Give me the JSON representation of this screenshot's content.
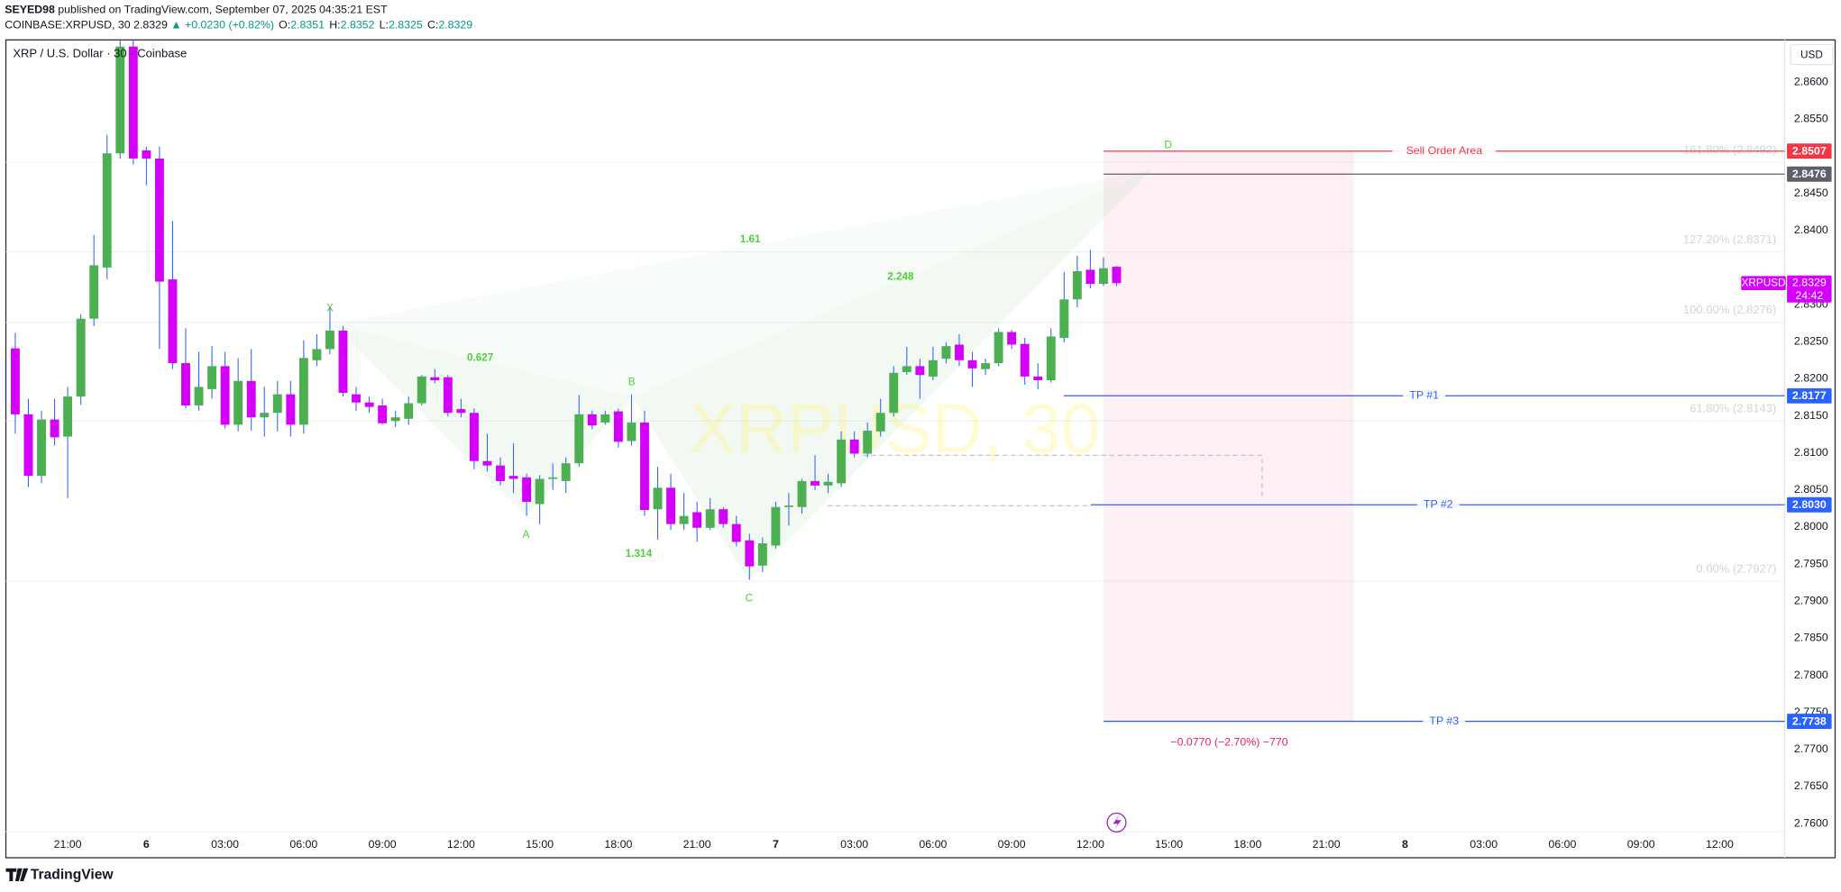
{
  "header": {
    "author": "SEYED98",
    "published": "published on TradingView.com, September 07, 2025 04:35:21 EST",
    "symbol": "COINBASE:XRPUSD, 30",
    "last": "2.8329",
    "change": "▲ +0.0230 (+0.82%)",
    "ohlc": [
      [
        "O:",
        "2.8351"
      ],
      [
        "H:",
        "2.8352"
      ],
      [
        "L:",
        "2.8325"
      ],
      [
        "C:",
        "2.8329"
      ]
    ]
  },
  "chart_data": {
    "type": "candlestick",
    "title": "XRP / U.S. Dollar · 30 · Coinbase",
    "watermark": "XRPUSD, 30",
    "currency": "USD",
    "categories": [
      null,
      null,
      null,
      null,
      "21:00",
      null,
      null,
      null,
      null,
      null,
      "6",
      null,
      null,
      null,
      null,
      null,
      "03:00",
      null,
      null,
      null,
      null,
      null,
      "06:00",
      null,
      null,
      null,
      null,
      null,
      "09:00",
      null,
      null,
      null,
      null,
      null,
      "12:00",
      null,
      null,
      null,
      null,
      null,
      "15:00",
      null,
      null,
      null,
      null,
      null,
      "18:00",
      null,
      null,
      null,
      null,
      null,
      "21:00",
      null,
      null,
      null,
      null,
      null,
      "7",
      null,
      null,
      null,
      null,
      null,
      "03:00",
      null,
      null,
      null,
      null,
      null,
      "06:00",
      null,
      null,
      null,
      null,
      null,
      "09:00",
      null,
      null,
      null,
      null,
      null,
      "12:00",
      null,
      null
    ],
    "future_categories": [
      "15:00",
      "18:00",
      "21:00",
      "8",
      "03:00",
      "06:00",
      "09:00",
      "12:00"
    ],
    "open": [
      2.8241,
      2.8152,
      2.8069,
      2.8145,
      2.8122,
      2.8176,
      2.8281,
      2.835,
      2.8504,
      2.8648,
      2.8508,
      2.8497,
      2.8334,
      2.8221,
      2.8164,
      2.8186,
      2.8217,
      2.8138,
      2.8197,
      2.8148,
      2.8154,
      2.8179,
      2.8138,
      2.8225,
      2.824,
      2.8265,
      2.8179,
      2.8168,
      2.8164,
      2.8143,
      2.8146,
      2.8167,
      2.8202,
      2.8202,
      2.8159,
      2.8154,
      2.8089,
      2.8083,
      2.8069,
      2.8067,
      2.8031,
      2.8065,
      2.8062,
      2.8086,
      2.8152,
      2.8141,
      2.8156,
      2.8116,
      2.8141,
      2.8024,
      2.8053,
      2.8004,
      2.802,
      2.7999,
      2.8024,
      2.8004,
      2.7982,
      2.7948,
      2.7975,
      2.8027,
      2.8027,
      2.8062,
      2.8056,
      2.8059,
      2.8118,
      2.8099,
      2.8129,
      2.8154,
      2.8209,
      2.8217,
      2.8203,
      2.8227,
      2.8246,
      2.8225,
      2.8213,
      2.8221,
      2.8263,
      2.8247,
      2.8203,
      2.8198,
      2.8255,
      2.8307,
      2.8347,
      2.8328,
      2.8351
    ],
    "high": [
      2.8262,
      2.8173,
      2.8157,
      2.8173,
      2.8189,
      2.8287,
      2.8394,
      2.8529,
      2.8657,
      2.8657,
      2.8513,
      2.8513,
      2.8413,
      2.8268,
      2.8236,
      2.8244,
      2.8236,
      2.8228,
      2.824,
      2.8189,
      2.8197,
      2.8197,
      2.8252,
      2.826,
      2.8296,
      2.8271,
      2.8189,
      2.8176,
      2.8173,
      2.8157,
      2.8176,
      2.8205,
      2.8213,
      2.8205,
      2.8173,
      2.816,
      2.8126,
      2.8094,
      2.8113,
      2.8072,
      2.807,
      2.8086,
      2.8094,
      2.8178,
      2.8157,
      2.8157,
      2.816,
      2.8179,
      2.8157,
      2.8081,
      2.8072,
      2.8046,
      2.8034,
      2.8039,
      2.8027,
      2.8015,
      2.7991,
      2.7986,
      2.8034,
      2.8046,
      2.8065,
      2.8097,
      2.8072,
      2.8129,
      2.8129,
      2.8141,
      2.8173,
      2.8217,
      2.8243,
      2.8227,
      2.8243,
      2.8249,
      2.826,
      2.8236,
      2.8227,
      2.8268,
      2.8266,
      2.8255,
      2.8221,
      2.8268,
      2.8344,
      2.8366,
      2.8374,
      2.8364,
      2.8352
    ],
    "low": [
      2.8126,
      2.8054,
      2.8059,
      2.811,
      2.8039,
      2.8165,
      2.8271,
      2.8334,
      2.8497,
      2.8489,
      2.8461,
      2.824,
      2.8213,
      2.816,
      2.8157,
      2.8173,
      2.8133,
      2.8129,
      2.813,
      2.8122,
      2.8129,
      2.8122,
      2.8126,
      2.8217,
      2.8233,
      2.8176,
      2.8157,
      2.8154,
      2.8138,
      2.8135,
      2.8138,
      2.8164,
      2.8194,
      2.8149,
      2.8148,
      2.8078,
      2.8075,
      2.8056,
      2.8046,
      2.8015,
      2.8004,
      2.805,
      2.8046,
      2.8081,
      2.8132,
      2.8138,
      2.8107,
      2.811,
      2.8015,
      2.7983,
      2.7996,
      2.7996,
      2.798,
      2.7996,
      2.7999,
      2.7974,
      2.7929,
      2.7939,
      2.7971,
      2.8002,
      2.8018,
      2.805,
      2.8046,
      2.8054,
      2.8094,
      2.8094,
      2.8122,
      2.8149,
      2.8205,
      2.8173,
      2.8198,
      2.8221,
      2.8217,
      2.8189,
      2.8205,
      2.8217,
      2.824,
      2.8192,
      2.8186,
      2.8195,
      2.8249,
      2.8296,
      2.8322,
      2.8325,
      2.8325
    ],
    "close": [
      2.8152,
      2.8069,
      2.8145,
      2.8121,
      2.8176,
      2.8281,
      2.8353,
      2.8504,
      2.8648,
      2.8497,
      2.8497,
      2.8331,
      2.8221,
      2.8164,
      2.8189,
      2.8217,
      2.8138,
      2.8197,
      2.8148,
      2.8154,
      2.8179,
      2.8138,
      2.8228,
      2.824,
      2.8265,
      2.8181,
      2.8168,
      2.8162,
      2.814,
      2.8148,
      2.8167,
      2.8203,
      2.8198,
      2.8154,
      2.8154,
      2.8089,
      2.8083,
      2.8062,
      2.8065,
      2.8034,
      2.8065,
      2.8067,
      2.8086,
      2.8152,
      2.8137,
      2.8152,
      2.8115,
      2.8141,
      2.8023,
      2.8053,
      2.8004,
      2.8015,
      2.7999,
      2.8024,
      2.8004,
      2.798,
      2.7947,
      2.7978,
      2.8027,
      2.8029,
      2.8062,
      2.8056,
      2.8061,
      2.8118,
      2.8099,
      2.813,
      2.8154,
      2.8208,
      2.8217,
      2.8205,
      2.8225,
      2.8244,
      2.8225,
      2.8214,
      2.8221,
      2.8263,
      2.8246,
      2.8203,
      2.8198,
      2.8257,
      2.8307,
      2.8345,
      2.8328,
      2.8349,
      2.8329
    ],
    "up_color": "#4caf50",
    "down_color": "#d500f9",
    "wick_color": "#2962ff",
    "ylim": [
      2.7554,
      2.8657
    ],
    "yticks": [
      {
        "value": 2.76,
        "label": "2.7600"
      },
      {
        "value": 2.765,
        "label": "2.7650"
      },
      {
        "value": 2.77,
        "label": "2.7700"
      },
      {
        "value": 2.775,
        "label": "2.7750"
      },
      {
        "value": 2.78,
        "label": "2.7800"
      },
      {
        "value": 2.785,
        "label": "2.7850"
      },
      {
        "value": 2.79,
        "label": "2.7900"
      },
      {
        "value": 2.795,
        "label": "2.7950"
      },
      {
        "value": 2.8,
        "label": "2.8000"
      },
      {
        "value": 2.805,
        "label": "2.8050"
      },
      {
        "value": 2.81,
        "label": "2.8100"
      },
      {
        "value": 2.815,
        "label": "2.8150"
      },
      {
        "value": 2.82,
        "label": "2.8200"
      },
      {
        "value": 2.825,
        "label": "2.8250"
      },
      {
        "value": 2.83,
        "label": "2.8300"
      },
      {
        "value": 2.84,
        "label": "2.8400"
      },
      {
        "value": 2.845,
        "label": "2.8450"
      },
      {
        "value": 2.855,
        "label": "2.8550"
      },
      {
        "value": 2.86,
        "label": "2.8600"
      }
    ],
    "levels": [
      {
        "name": "Sell Order Area",
        "value": 2.8507,
        "color": "#f23645"
      },
      {
        "value": 2.8476,
        "color": "#5d606b"
      },
      {
        "name": "TP #1",
        "value": 2.8177,
        "color": "#2962ff"
      },
      {
        "name": "TP #2",
        "value": {
          "value": 2.803,
          "label": "2.8030"
        },
        "color": "#2962ff"
      },
      {
        "name": "TP #3",
        "value": 2.7738,
        "color": "#2962ff"
      }
    ],
    "fib_levels": [
      {
        "label": "161.80% (2.8492)",
        "value": 2.8492
      },
      {
        "label": "127.20% (2.8371)",
        "value": 2.8371
      },
      {
        "label": "100.00% (2.8276)",
        "value": 2.8276
      },
      {
        "label": "61.80% (2.8143)",
        "value": 2.8143
      },
      {
        "label": "0.00% (2.7927)",
        "value": 2.7927
      }
    ],
    "pattern": {
      "points": [
        "X",
        "A",
        "B",
        "C",
        "D"
      ],
      "ratios": [
        "0.627",
        "1.314",
        "1.61",
        "2.248"
      ]
    },
    "measure": "−0.0770 (−2.70%) −770",
    "last_price": {
      "name": "XRPUSD",
      "value": 2.8329,
      "countdown": "24:42"
    }
  },
  "footer": {
    "logo": "TradingView"
  }
}
